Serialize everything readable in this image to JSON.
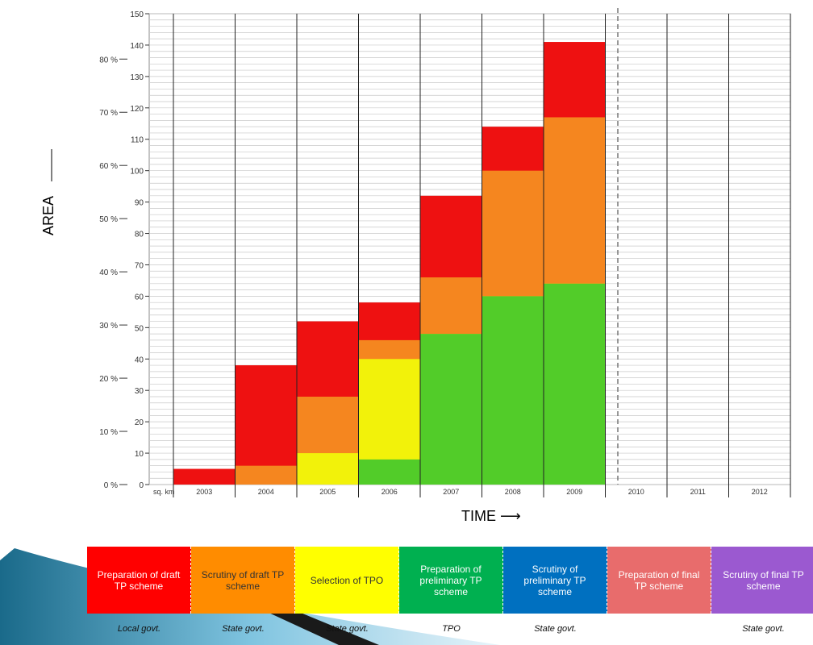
{
  "chart_data": {
    "type": "area",
    "y_ticks_km": [
      0,
      10,
      20,
      30,
      40,
      50,
      60,
      70,
      80,
      90,
      100,
      110,
      120,
      130,
      140,
      150
    ],
    "y_ticks_pct": [
      "0 %",
      "10 %",
      "20 %",
      "30 %",
      "40 %",
      "50 %",
      "60 %",
      "70 %",
      "80 %"
    ],
    "x_categories": [
      "2003",
      "2004",
      "2005",
      "2006",
      "2007",
      "2008",
      "2009",
      "2010",
      "2011",
      "2012"
    ],
    "unit_label": "sq. km",
    "ylim": [
      0,
      150
    ],
    "xlabel": "TIME",
    "ylabel": "AREA",
    "series": [
      {
        "name": "Preparation of draft TP scheme",
        "color": "#ee1111"
      },
      {
        "name": "Scrutiny of draft TP scheme",
        "color": "#f5861f"
      },
      {
        "name": "Selection of TPO",
        "color": "#f2f20a"
      },
      {
        "name": "Preparation of preliminary TP scheme",
        "color": "#52cc29"
      }
    ],
    "cumulative_area_km": [
      {
        "year": "2003",
        "red": 5,
        "orange": 0,
        "yellow": 0,
        "green": 0
      },
      {
        "year": "2004",
        "red": 38,
        "orange": 6,
        "yellow": 0,
        "green": 0
      },
      {
        "year": "2005",
        "red": 52,
        "orange": 28,
        "yellow": 10,
        "green": 0
      },
      {
        "year": "2006",
        "red": 58,
        "orange": 46,
        "yellow": 40,
        "green": 8
      },
      {
        "year": "2007",
        "red": 92,
        "orange": 66,
        "yellow": 48,
        "green": 48
      },
      {
        "year": "2008",
        "red": 114,
        "orange": 100,
        "yellow": 60,
        "green": 60
      },
      {
        "year": "2009",
        "red": 141,
        "orange": 117,
        "yellow": 64,
        "green": 64
      }
    ]
  },
  "legend": [
    {
      "label": "Preparation of draft TP scheme",
      "color": "#ff0000",
      "actor": "Local govt."
    },
    {
      "label": "Scrutiny of draft TP scheme",
      "color": "#ff8c00",
      "actor": "State govt."
    },
    {
      "label": "Selection of TPO",
      "color": "#ffff00",
      "actor": "State govt."
    },
    {
      "label": "Preparation of preliminary TP scheme",
      "color": "#00b050",
      "actor": "TPO"
    },
    {
      "label": "Scrutiny of preliminary TP scheme",
      "color": "#0070c0",
      "actor": "State govt."
    },
    {
      "label": "Preparation of final TP scheme",
      "color": "#e86c6c",
      "actor": ""
    },
    {
      "label": "Scrutiny of final TP scheme",
      "color": "#9b59d0",
      "actor": "State govt."
    }
  ]
}
